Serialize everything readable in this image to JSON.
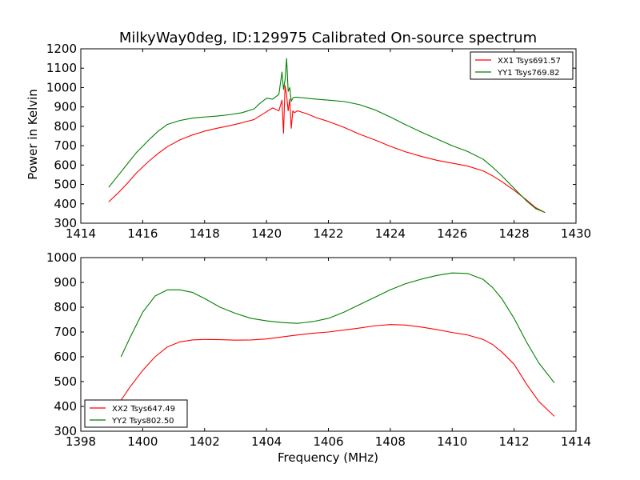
{
  "colors": {
    "XX": "#ff0000",
    "YY": "#008000",
    "frame": "#000000",
    "background": "#ffffff"
  },
  "chart_data": [
    {
      "type": "line",
      "title": "MilkyWay0deg, ID:129975 Calibrated On-source spectrum",
      "xlabel": "",
      "ylabel": "Power in Kelvin",
      "xlim": [
        1414,
        1430
      ],
      "ylim": [
        300,
        1200
      ],
      "xticks": [
        1414,
        1416,
        1418,
        1420,
        1422,
        1424,
        1426,
        1428,
        1430
      ],
      "yticks": [
        300,
        400,
        500,
        600,
        700,
        800,
        900,
        1000,
        1100,
        1200
      ],
      "legend_position": "upper-right",
      "series": [
        {
          "name": "XX1 Tsys691.57",
          "color": "#ff0000",
          "x": [
            1414.9,
            1415.2,
            1415.5,
            1415.8,
            1416.2,
            1416.5,
            1416.8,
            1417.2,
            1417.6,
            1418.0,
            1418.4,
            1418.8,
            1419.2,
            1419.6,
            1419.8,
            1420.0,
            1420.2,
            1420.4,
            1420.5,
            1420.55,
            1420.6,
            1420.65,
            1420.7,
            1420.75,
            1420.8,
            1420.85,
            1420.9,
            1421.0,
            1421.3,
            1421.6,
            1422.0,
            1422.5,
            1423.0,
            1423.5,
            1424.0,
            1424.5,
            1425.0,
            1425.5,
            1426.0,
            1426.5,
            1427.0,
            1427.3,
            1427.6,
            1428.0,
            1428.4,
            1428.7,
            1429.0
          ],
          "y": [
            410,
            455,
            505,
            560,
            620,
            660,
            695,
            730,
            755,
            775,
            790,
            803,
            818,
            835,
            855,
            875,
            895,
            880,
            935,
            765,
            1010,
            960,
            880,
            940,
            790,
            880,
            870,
            880,
            865,
            845,
            825,
            795,
            760,
            730,
            697,
            668,
            645,
            625,
            610,
            595,
            570,
            545,
            515,
            470,
            420,
            380,
            355
          ]
        },
        {
          "name": "YY1 Tsys769.82",
          "color": "#008000",
          "x": [
            1414.9,
            1415.2,
            1415.5,
            1415.8,
            1416.2,
            1416.5,
            1416.8,
            1417.2,
            1417.6,
            1418.0,
            1418.4,
            1418.8,
            1419.2,
            1419.6,
            1419.8,
            1420.0,
            1420.2,
            1420.4,
            1420.5,
            1420.55,
            1420.6,
            1420.65,
            1420.7,
            1420.75,
            1420.8,
            1420.85,
            1420.9,
            1421.0,
            1421.3,
            1421.6,
            1422.0,
            1422.5,
            1423.0,
            1423.5,
            1424.0,
            1424.5,
            1425.0,
            1425.5,
            1426.0,
            1426.5,
            1427.0,
            1427.3,
            1427.6,
            1428.0,
            1428.4,
            1428.7,
            1429.0
          ],
          "y": [
            485,
            545,
            605,
            665,
            730,
            775,
            810,
            830,
            842,
            848,
            853,
            860,
            870,
            890,
            920,
            945,
            940,
            965,
            1080,
            990,
            1040,
            1150,
            980,
            1000,
            930,
            945,
            950,
            950,
            945,
            940,
            935,
            928,
            912,
            885,
            848,
            808,
            770,
            735,
            700,
            670,
            630,
            590,
            545,
            480,
            415,
            375,
            355
          ]
        }
      ]
    },
    {
      "type": "line",
      "title": "",
      "xlabel": "Frequency (MHz)",
      "ylabel": "",
      "xlim": [
        1398,
        1414
      ],
      "ylim": [
        300,
        1000
      ],
      "xticks": [
        1398,
        1400,
        1402,
        1404,
        1406,
        1408,
        1410,
        1412,
        1414
      ],
      "yticks": [
        300,
        400,
        500,
        600,
        700,
        800,
        900,
        1000
      ],
      "legend_position": "lower-left",
      "series": [
        {
          "name": "XX2 Tsys647.49",
          "color": "#ff0000",
          "x": [
            1399.3,
            1399.6,
            1400.0,
            1400.4,
            1400.8,
            1401.2,
            1401.6,
            1402.0,
            1402.5,
            1403.0,
            1403.5,
            1404.0,
            1404.5,
            1405.0,
            1405.5,
            1406.0,
            1406.5,
            1407.0,
            1407.5,
            1408.0,
            1408.5,
            1409.0,
            1409.5,
            1410.0,
            1410.5,
            1411.0,
            1411.3,
            1411.6,
            1412.0,
            1412.4,
            1412.8,
            1413.3
          ],
          "y": [
            425,
            480,
            545,
            600,
            640,
            660,
            668,
            670,
            669,
            667,
            668,
            672,
            680,
            688,
            695,
            700,
            708,
            716,
            725,
            730,
            728,
            720,
            710,
            698,
            688,
            670,
            650,
            620,
            570,
            490,
            420,
            360
          ]
        },
        {
          "name": "YY2 Tsys802.50",
          "color": "#008000",
          "x": [
            1399.3,
            1399.6,
            1400.0,
            1400.4,
            1400.8,
            1401.2,
            1401.6,
            1402.0,
            1402.5,
            1403.0,
            1403.5,
            1404.0,
            1404.5,
            1405.0,
            1405.5,
            1406.0,
            1406.5,
            1407.0,
            1407.5,
            1408.0,
            1408.5,
            1409.0,
            1409.5,
            1410.0,
            1410.5,
            1411.0,
            1411.3,
            1411.6,
            1412.0,
            1412.4,
            1412.8,
            1413.3
          ],
          "y": [
            600,
            680,
            780,
            845,
            870,
            870,
            860,
            835,
            800,
            775,
            755,
            745,
            738,
            735,
            742,
            755,
            780,
            810,
            840,
            870,
            895,
            913,
            928,
            938,
            936,
            912,
            880,
            835,
            755,
            660,
            575,
            495
          ]
        }
      ]
    }
  ]
}
